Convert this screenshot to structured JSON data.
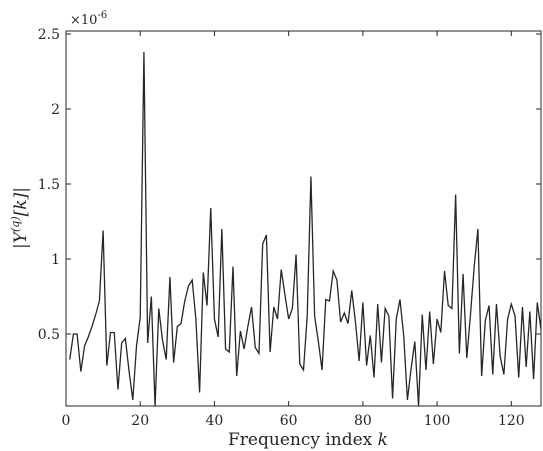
{
  "chart_data": {
    "type": "line",
    "title": "",
    "xlabel": "Frequency index k",
    "ylabel": "|Y^(q)[k]|",
    "y_exponent_label": "×10^-6",
    "xlim": [
      0,
      128
    ],
    "ylim": [
      0.02,
      2.52
    ],
    "x_ticks": [
      0,
      20,
      40,
      60,
      80,
      100,
      120
    ],
    "y_ticks": [
      0.5,
      1,
      1.5,
      2,
      2.5
    ],
    "x_tick_labels": [
      "0",
      "20",
      "40",
      "60",
      "80",
      "100",
      "120"
    ],
    "y_tick_labels": [
      "0.5",
      "1",
      "1.5",
      "2",
      "2.5"
    ],
    "grid": false,
    "series": [
      {
        "color": "#262626",
        "x": [
          1,
          2,
          3,
          4,
          5,
          6,
          7,
          8,
          9,
          10,
          11,
          12,
          13,
          14,
          15,
          16,
          17,
          18,
          19,
          20,
          21,
          22,
          23,
          24,
          25,
          26,
          27,
          28,
          29,
          30,
          31,
          32,
          33,
          34,
          35,
          36,
          37,
          38,
          39,
          40,
          41,
          42,
          43,
          44,
          45,
          46,
          47,
          48,
          49,
          50,
          51,
          52,
          53,
          54,
          55,
          56,
          57,
          58,
          59,
          60,
          61,
          62,
          63,
          64,
          65,
          66,
          67,
          68,
          69,
          70,
          71,
          72,
          73,
          74,
          75,
          76,
          77,
          78,
          79,
          80,
          81,
          82,
          83,
          84,
          85,
          86,
          87,
          88,
          89,
          90,
          91,
          92,
          93,
          94,
          95,
          96,
          97,
          98,
          99,
          100,
          101,
          102,
          103,
          104,
          105,
          106,
          107,
          108,
          109,
          110,
          111,
          112,
          113,
          114,
          115,
          116,
          117,
          118,
          119,
          120,
          121,
          122,
          123,
          124,
          125,
          126,
          127,
          128
        ],
        "values": [
          0.33,
          0.5,
          0.5,
          0.25,
          0.42,
          0.48,
          0.55,
          0.63,
          0.72,
          1.19,
          0.29,
          0.51,
          0.51,
          0.13,
          0.44,
          0.47,
          0.25,
          0.06,
          0.42,
          0.61,
          2.38,
          0.44,
          0.75,
          0.02,
          0.67,
          0.46,
          0.33,
          0.88,
          0.31,
          0.55,
          0.57,
          0.72,
          0.82,
          0.86,
          0.6,
          0.11,
          0.91,
          0.69,
          1.34,
          0.6,
          0.48,
          1.2,
          0.4,
          0.38,
          0.95,
          0.22,
          0.52,
          0.4,
          0.55,
          0.68,
          0.41,
          0.37,
          1.1,
          1.16,
          0.38,
          0.68,
          0.6,
          0.93,
          0.76,
          0.6,
          0.67,
          1.03,
          0.3,
          0.26,
          0.62,
          1.55,
          0.62,
          0.45,
          0.26,
          0.73,
          0.72,
          0.92,
          0.86,
          0.58,
          0.64,
          0.57,
          0.79,
          0.58,
          0.32,
          0.71,
          0.29,
          0.49,
          0.21,
          0.7,
          0.31,
          0.67,
          0.62,
          0.07,
          0.6,
          0.73,
          0.49,
          0.06,
          0.27,
          0.45,
          0.02,
          0.63,
          0.26,
          0.65,
          0.3,
          0.6,
          0.51,
          0.92,
          0.69,
          0.67,
          1.43,
          0.37,
          0.9,
          0.34,
          0.63,
          0.95,
          1.2,
          0.22,
          0.59,
          0.69,
          0.23,
          0.7,
          0.35,
          0.23,
          0.6,
          0.7,
          0.62,
          0.21,
          0.68,
          0.28,
          0.65,
          0.2,
          0.71,
          0.53
        ]
      }
    ]
  }
}
